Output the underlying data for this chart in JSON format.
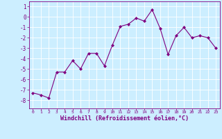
{
  "x": [
    0,
    1,
    2,
    3,
    4,
    5,
    6,
    7,
    8,
    9,
    10,
    11,
    12,
    13,
    14,
    15,
    16,
    17,
    18,
    19,
    20,
    21,
    22,
    23
  ],
  "y": [
    -7.3,
    -7.5,
    -7.8,
    -5.3,
    -5.3,
    -4.2,
    -5.0,
    -3.5,
    -3.5,
    -4.7,
    -2.7,
    -0.9,
    -0.7,
    -0.1,
    -0.4,
    0.7,
    -1.1,
    -3.6,
    -1.8,
    -1.0,
    -2.0,
    -1.8,
    -2.0,
    -3.0
  ],
  "line_color": "#800080",
  "marker": "D",
  "marker_size": 2.0,
  "bg_color": "#cceeff",
  "grid_color": "#ffffff",
  "xlabel": "Windchill (Refroidissement éolien,°C)",
  "xlabel_fontsize": 6.0,
  "xlabel_color": "#800080",
  "xtick_labels": [
    "0",
    "1",
    "2",
    "3",
    "4",
    "5",
    "6",
    "7",
    "8",
    "9",
    "10",
    "11",
    "12",
    "13",
    "14",
    "15",
    "16",
    "17",
    "18",
    "19",
    "20",
    "21",
    "22",
    "23"
  ],
  "ytick_values": [
    1,
    0,
    -1,
    -2,
    -3,
    -4,
    -5,
    -6,
    -7,
    -8
  ],
  "ylim": [
    -8.8,
    1.5
  ],
  "xlim": [
    -0.5,
    23.5
  ]
}
